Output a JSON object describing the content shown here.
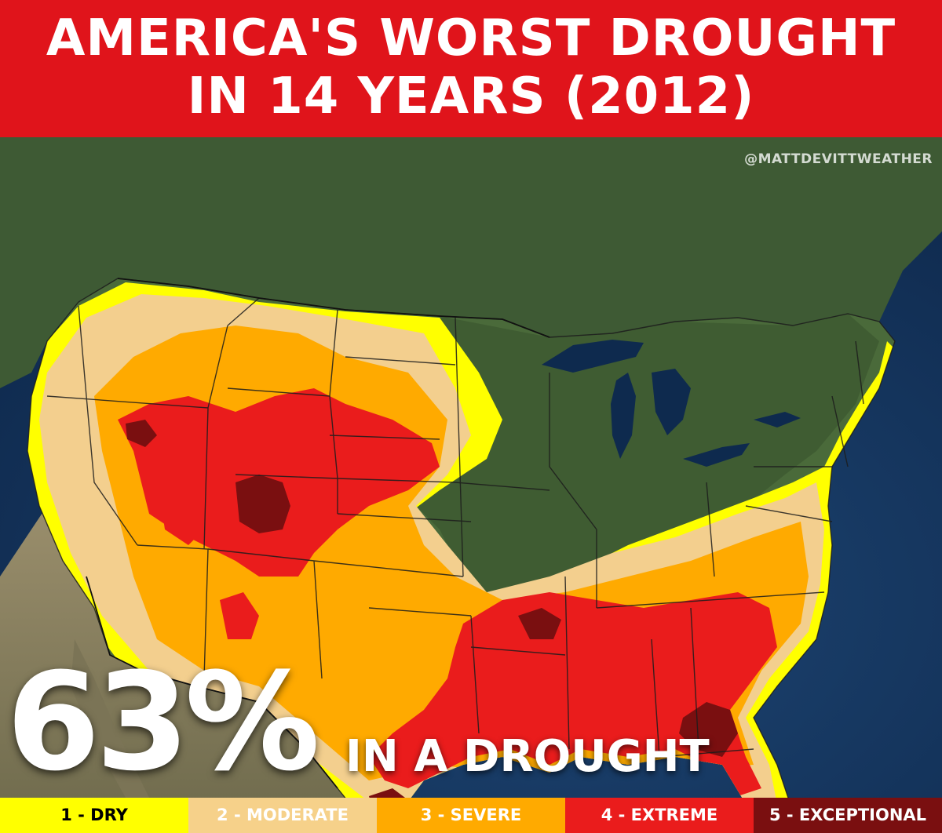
{
  "header": {
    "title_line1": "AMERICA'S WORST DROUGHT",
    "title_line2": "IN 14 YEARS (2012)"
  },
  "watermark": "@MATTDEVITTWEATHER",
  "stat": {
    "percent": "63%",
    "caption": "IN A DROUGHT"
  },
  "legend": [
    {
      "label": "1 - DRY",
      "color": "#ffff00",
      "text_color": "#000000"
    },
    {
      "label": "2 - MODERATE",
      "color": "#f6d18a",
      "text_color": "#ffffff"
    },
    {
      "label": "3 - SEVERE",
      "color": "#ffaa00",
      "text_color": "#ffffff"
    },
    {
      "label": "4 - EXTREME",
      "color": "#ea1c1c",
      "text_color": "#ffffff"
    },
    {
      "label": "5 - EXCEPTIONAL",
      "color": "#7a0f10",
      "text_color": "#ffffff"
    }
  ],
  "map_colors": {
    "ocean": "#0f2d52",
    "land": "#4a6a3a",
    "land_dark": "#3a5530",
    "mexico": "#8a8064",
    "lakes": "#0e2a4e",
    "borders": "#1c1c1c"
  }
}
